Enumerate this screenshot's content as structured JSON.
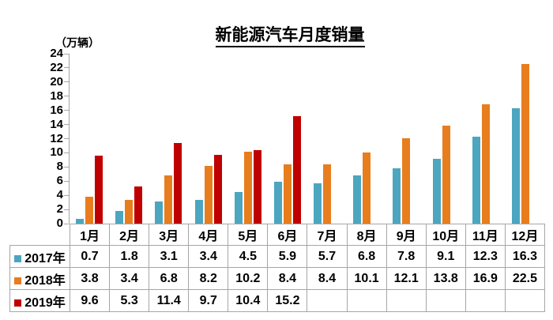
{
  "chart": {
    "title": "新能源汽车月度销量",
    "unit_label": "（万辆）"
  },
  "chart_data": {
    "type": "bar",
    "title": "新能源汽车月度销量",
    "ylabel": "（万辆）",
    "xlabel": "",
    "categories": [
      "1月",
      "2月",
      "3月",
      "4月",
      "5月",
      "6月",
      "7月",
      "8月",
      "9月",
      "10月",
      "11月",
      "12月"
    ],
    "series": [
      {
        "name": "2017年",
        "color": "#4CA6C0",
        "values": [
          0.7,
          1.8,
          3.1,
          3.4,
          4.5,
          5.9,
          5.7,
          6.8,
          7.8,
          9.1,
          12.3,
          16.3
        ]
      },
      {
        "name": "2018年",
        "color": "#E87D1E",
        "values": [
          3.8,
          3.4,
          6.8,
          8.2,
          10.2,
          8.4,
          8.4,
          10.1,
          12.1,
          13.8,
          16.9,
          22.5
        ]
      },
      {
        "name": "2019年",
        "color": "#C00000",
        "values": [
          9.6,
          5.3,
          11.4,
          9.7,
          10.4,
          15.2,
          null,
          null,
          null,
          null,
          null,
          null
        ]
      }
    ],
    "ylim": [
      0,
      24
    ],
    "y_step": 2,
    "grid": false,
    "legend_position": "table-left",
    "table_border_color": "#a6a6a6",
    "axis_color": "#a6a6a6"
  }
}
